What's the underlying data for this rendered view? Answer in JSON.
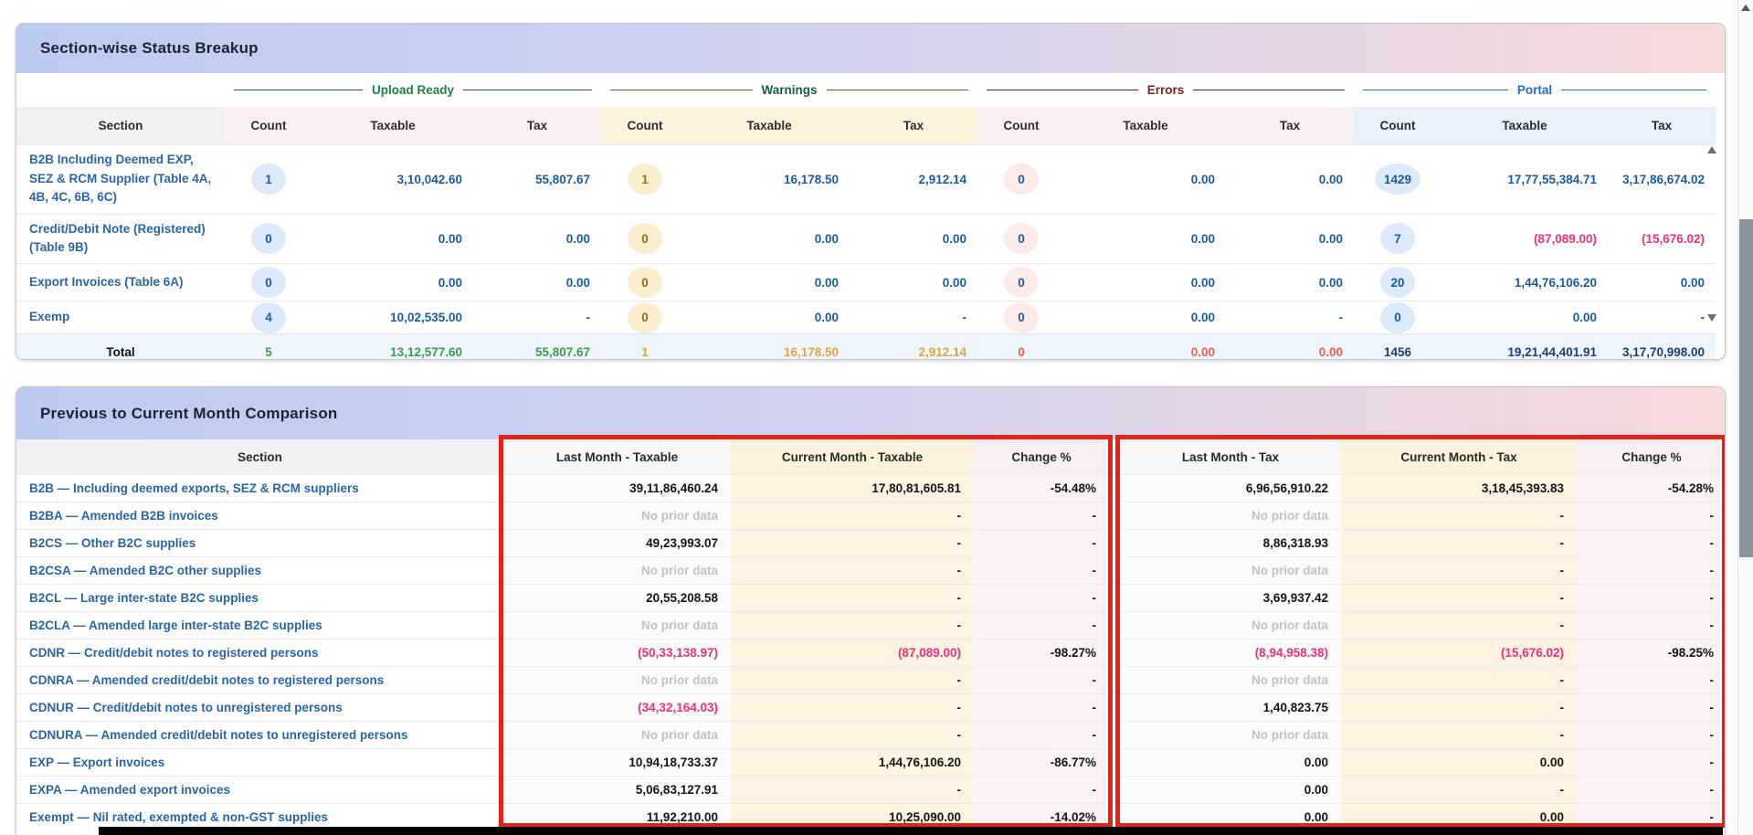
{
  "theme": {
    "header_gradient_left": "#bccbf2",
    "header_gradient_right": "#f6dadc",
    "link_blue": "#2b64a8",
    "value_blue": "#1d5a9e",
    "negative_pink": "#ef2f7e",
    "annotation_red": "#e32219",
    "muted_gray": "#c2c2c2",
    "black_bar": "#000000"
  },
  "status_breakup": {
    "title": "Section-wise Status Breakup",
    "section_header": "Section",
    "columns": [
      "Count",
      "Taxable",
      "Tax"
    ],
    "groups": [
      {
        "id": "upload_ready",
        "label": "Upload Ready",
        "label_color": "#1a7f4a",
        "line_color": "#2e5d3f",
        "header_bg": "#faf0f1",
        "pill_bg": "#dceafb",
        "pill_text": "#1d5a9e",
        "total_color": "#3d9a4e"
      },
      {
        "id": "warnings",
        "label": "Warnings",
        "label_color": "#11604e",
        "line_color": "#6e5a17",
        "header_bg": "#fdf3da",
        "pill_bg": "#fcefcf",
        "pill_text": "#8f6e1c",
        "total_color": "#e0a53e"
      },
      {
        "id": "errors",
        "label": "Errors",
        "label_color": "#7c1f2d",
        "line_color": "#6d1a26",
        "header_bg": "#faeff1",
        "pill_bg": "#fdebe9",
        "pill_text": "#1d5a9e",
        "total_color": "#f15b4b"
      },
      {
        "id": "portal",
        "label": "Portal",
        "label_color": "#2467d9",
        "line_color": "#2d6fd8",
        "header_bg": "#e9f2fc",
        "pill_bg": "#dceafb",
        "pill_text": "#1d5a9e",
        "total_color": "#1b3f73"
      }
    ],
    "rows": [
      {
        "section": "B2B Including Deemed EXP, SEZ & RCM Supplier (Table 4A, 4B, 4C, 6B, 6C)",
        "upload_ready": {
          "count": "1",
          "taxable": "3,10,042.60",
          "tax": "55,807.67"
        },
        "warnings": {
          "count": "1",
          "taxable": "16,178.50",
          "tax": "2,912.14"
        },
        "errors": {
          "count": "0",
          "taxable": "0.00",
          "tax": "0.00"
        },
        "portal": {
          "count": "1429",
          "taxable": "17,77,55,384.71",
          "tax": "3,17,86,674.02"
        }
      },
      {
        "section": "Credit/Debit Note (Registered) (Table 9B)",
        "upload_ready": {
          "count": "0",
          "taxable": "0.00",
          "tax": "0.00"
        },
        "warnings": {
          "count": "0",
          "taxable": "0.00",
          "tax": "0.00"
        },
        "errors": {
          "count": "0",
          "taxable": "0.00",
          "tax": "0.00"
        },
        "portal": {
          "count": "7",
          "taxable": "(87,089.00)",
          "tax": "(15,676.02)"
        }
      },
      {
        "section": "Export Invoices (Table 6A)",
        "upload_ready": {
          "count": "0",
          "taxable": "0.00",
          "tax": "0.00"
        },
        "warnings": {
          "count": "0",
          "taxable": "0.00",
          "tax": "0.00"
        },
        "errors": {
          "count": "0",
          "taxable": "0.00",
          "tax": "0.00"
        },
        "portal": {
          "count": "20",
          "taxable": "1,44,76,106.20",
          "tax": "0.00"
        }
      },
      {
        "section": "Exemp",
        "upload_ready": {
          "count": "4",
          "taxable": "10,02,535.00",
          "tax": "-"
        },
        "warnings": {
          "count": "0",
          "taxable": "0.00",
          "tax": "-"
        },
        "errors": {
          "count": "0",
          "taxable": "0.00",
          "tax": "-"
        },
        "portal": {
          "count": "0",
          "taxable": "0.00",
          "tax": "-"
        }
      }
    ],
    "total": {
      "label": "Total",
      "upload_ready": {
        "count": "5",
        "taxable": "13,12,577.60",
        "tax": "55,807.67"
      },
      "warnings": {
        "count": "1",
        "taxable": "16,178.50",
        "tax": "2,912.14"
      },
      "errors": {
        "count": "0",
        "taxable": "0.00",
        "tax": "0.00"
      },
      "portal": {
        "count": "1456",
        "taxable": "19,21,44,401.91",
        "tax": "3,17,70,998.00"
      }
    }
  },
  "comparison": {
    "title": "Previous to Current Month Comparison",
    "headers": [
      "Section",
      "Last Month - Taxable",
      "Current Month - Taxable",
      "Change %",
      "Last Month - Tax",
      "Current Month - Tax",
      "Change %"
    ],
    "rows": [
      {
        "section": "B2B — Including deemed exports, SEZ & RCM suppliers",
        "lm_taxable": "39,11,86,460.24",
        "cm_taxable": "17,80,81,605.81",
        "chg_taxable": "-54.48%",
        "lm_tax": "6,96,56,910.22",
        "cm_tax": "3,18,45,393.83",
        "chg_tax": "-54.28%"
      },
      {
        "section": "B2BA — Amended B2B invoices",
        "lm_taxable": "No prior data",
        "cm_taxable": "-",
        "chg_taxable": "-",
        "lm_tax": "No prior data",
        "cm_tax": "-",
        "chg_tax": "-"
      },
      {
        "section": "B2CS — Other B2C supplies",
        "lm_taxable": "49,23,993.07",
        "cm_taxable": "-",
        "chg_taxable": "-",
        "lm_tax": "8,86,318.93",
        "cm_tax": "-",
        "chg_tax": "-"
      },
      {
        "section": "B2CSA — Amended B2C other supplies",
        "lm_taxable": "No prior data",
        "cm_taxable": "-",
        "chg_taxable": "-",
        "lm_tax": "No prior data",
        "cm_tax": "-",
        "chg_tax": "-"
      },
      {
        "section": "B2CL — Large inter-state B2C supplies",
        "lm_taxable": "20,55,208.58",
        "cm_taxable": "-",
        "chg_taxable": "-",
        "lm_tax": "3,69,937.42",
        "cm_tax": "-",
        "chg_tax": "-"
      },
      {
        "section": "B2CLA — Amended large inter-state B2C supplies",
        "lm_taxable": "No prior data",
        "cm_taxable": "-",
        "chg_taxable": "-",
        "lm_tax": "No prior data",
        "cm_tax": "-",
        "chg_tax": "-"
      },
      {
        "section": "CDNR — Credit/debit notes to registered persons",
        "lm_taxable": "(50,33,138.97)",
        "cm_taxable": "(87,089.00)",
        "chg_taxable": "-98.27%",
        "lm_tax": "(8,94,958.38)",
        "cm_tax": "(15,676.02)",
        "chg_tax": "-98.25%"
      },
      {
        "section": "CDNRA — Amended credit/debit notes to registered persons",
        "lm_taxable": "No prior data",
        "cm_taxable": "-",
        "chg_taxable": "-",
        "lm_tax": "No prior data",
        "cm_tax": "-",
        "chg_tax": "-"
      },
      {
        "section": "CDNUR — Credit/debit notes to unregistered persons",
        "lm_taxable": "(34,32,164.03)",
        "cm_taxable": "-",
        "chg_taxable": "-",
        "lm_tax": "1,40,823.75",
        "cm_tax": "-",
        "chg_tax": "-"
      },
      {
        "section": "CDNURA — Amended credit/debit notes to unregistered persons",
        "lm_taxable": "No prior data",
        "cm_taxable": "-",
        "chg_taxable": "-",
        "lm_tax": "No prior data",
        "cm_tax": "-",
        "chg_tax": "-"
      },
      {
        "section": "EXP — Export invoices",
        "lm_taxable": "10,94,18,733.37",
        "cm_taxable": "1,44,76,106.20",
        "chg_taxable": "-86.77%",
        "lm_tax": "0.00",
        "cm_tax": "0.00",
        "chg_tax": "-"
      },
      {
        "section": "EXPA — Amended export invoices",
        "lm_taxable": "5,06,83,127.91",
        "cm_taxable": "-",
        "chg_taxable": "-",
        "lm_tax": "0.00",
        "cm_tax": "-",
        "chg_tax": "-"
      },
      {
        "section": "Exempt — Nil rated, exempted & non-GST supplies",
        "lm_taxable": "11,92,210.00",
        "cm_taxable": "10,25,090.00",
        "chg_taxable": "-14.02%",
        "lm_tax": "0.00",
        "cm_tax": "0.00",
        "chg_tax": "-"
      }
    ]
  }
}
